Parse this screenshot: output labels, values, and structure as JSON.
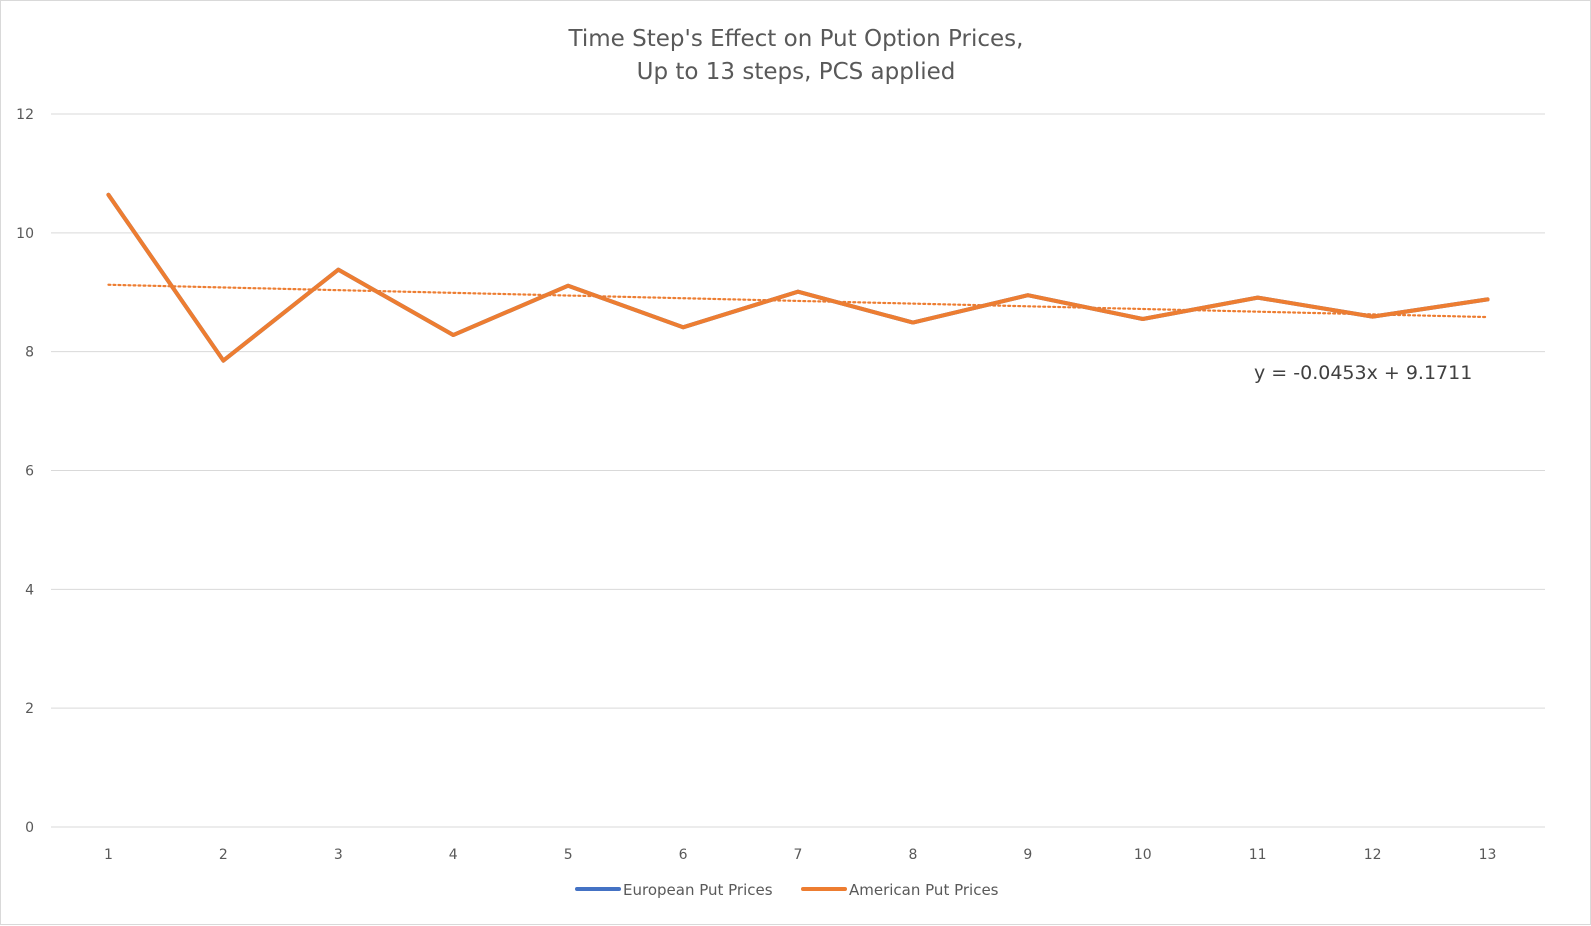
{
  "chart_data": {
    "type": "line",
    "title": [
      "Time Step's Effect on Put Option Prices,",
      "Up to 13 steps, PCS applied"
    ],
    "xlabel": "",
    "ylabel": "",
    "categories": [
      "1",
      "2",
      "3",
      "4",
      "5",
      "6",
      "7",
      "8",
      "9",
      "10",
      "11",
      "12",
      "13"
    ],
    "ylim": [
      0,
      12
    ],
    "yticks": [
      "0",
      "2",
      "4",
      "6",
      "8",
      "10",
      "12"
    ],
    "grid": true,
    "legend_position": "bottom",
    "series": [
      {
        "name": "European Put Prices",
        "color": "#4472C4",
        "values": [
          10.64,
          7.85,
          9.38,
          8.28,
          9.11,
          8.41,
          9.01,
          8.49,
          8.95,
          8.55,
          8.91,
          8.59,
          8.88
        ]
      },
      {
        "name": "American Put Prices",
        "color": "#ED7D31",
        "values": [
          10.64,
          7.85,
          9.38,
          8.28,
          9.11,
          8.41,
          9.01,
          8.49,
          8.95,
          8.55,
          8.91,
          8.59,
          8.88
        ]
      }
    ],
    "trendline": {
      "series": "American Put Prices",
      "style": "dotted",
      "color": "#ED7D31",
      "slope": -0.0453,
      "intercept": 9.1711,
      "equation_label": "y = -0.0453x + 9.1711"
    }
  }
}
